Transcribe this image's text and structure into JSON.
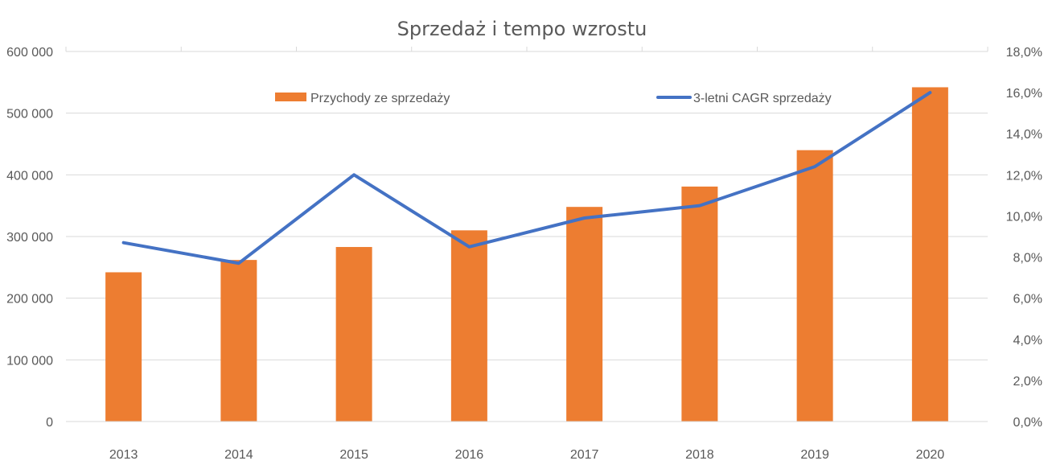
{
  "chart_data": {
    "type": "bar",
    "title": "Sprzedaż i tempo wzrostu",
    "xlabel": "",
    "ylabel": "",
    "categories": [
      "2013",
      "2014",
      "2015",
      "2016",
      "2017",
      "2018",
      "2019",
      "2020"
    ],
    "series": [
      {
        "name": "Przychody ze sprzedaży",
        "type": "bar",
        "axis": "left",
        "color": "#ED7D31",
        "values": [
          242000,
          262000,
          283000,
          310000,
          348000,
          381000,
          440000,
          542000
        ]
      },
      {
        "name": "3-letni CAGR sprzedaży",
        "type": "line",
        "axis": "right",
        "color": "#4472C4",
        "values": [
          0.087,
          0.077,
          0.12,
          0.085,
          0.099,
          0.105,
          0.124,
          0.16
        ]
      }
    ],
    "ylim": [
      0,
      600000
    ],
    "y_ticks": [
      "0",
      "100 000",
      "200 000",
      "300 000",
      "400 000",
      "500 000",
      "600 000"
    ],
    "y2lim": [
      0,
      0.18
    ],
    "y2_ticks": [
      "0,0%",
      "2,0%",
      "4,0%",
      "6,0%",
      "8,0%",
      "10,0%",
      "12,0%",
      "14,0%",
      "16,0%",
      "18,0%"
    ],
    "grid": true,
    "legend": "top"
  }
}
